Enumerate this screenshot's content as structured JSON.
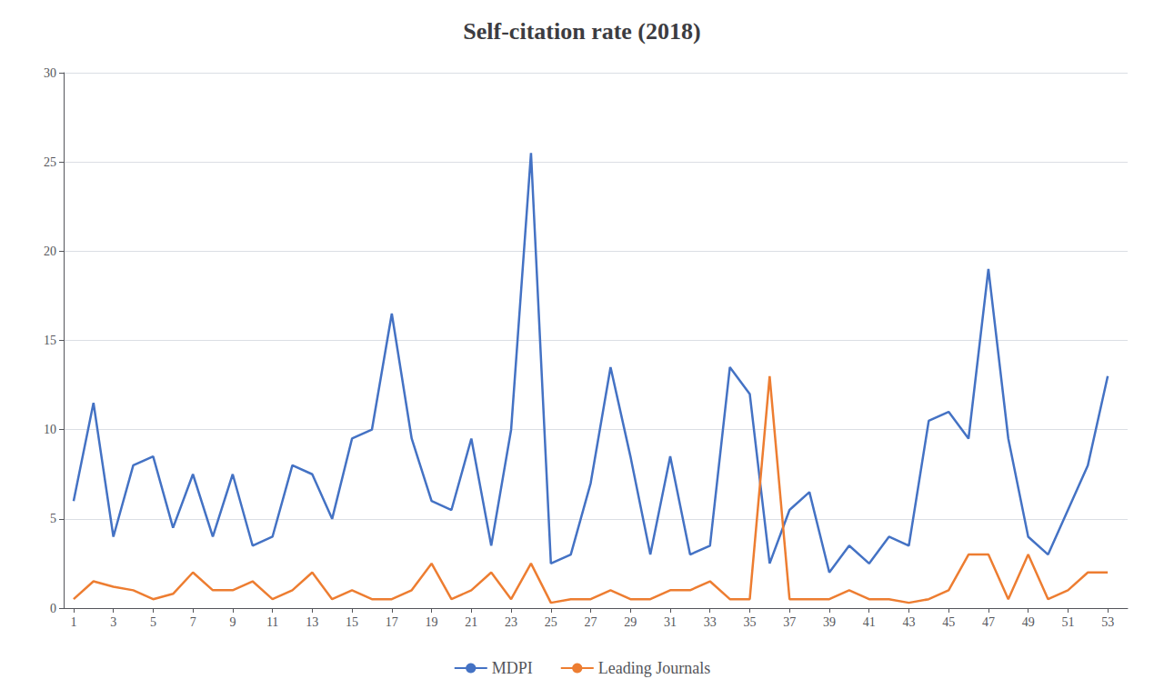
{
  "chart_data": {
    "type": "line",
    "title": "Self-citation rate (2018)",
    "x": [
      1,
      2,
      3,
      4,
      5,
      6,
      7,
      8,
      9,
      10,
      11,
      12,
      13,
      14,
      15,
      16,
      17,
      18,
      19,
      20,
      21,
      22,
      23,
      24,
      25,
      26,
      27,
      28,
      29,
      30,
      31,
      32,
      33,
      34,
      35,
      36,
      37,
      38,
      39,
      40,
      41,
      42,
      43,
      44,
      45,
      46,
      47,
      48,
      49,
      50,
      51,
      52,
      53
    ],
    "series": [
      {
        "name": "MDPI",
        "color": "#4472C4",
        "values": [
          6,
          11.5,
          4,
          8,
          8.5,
          4.5,
          7.5,
          4,
          7.5,
          3.5,
          4,
          8,
          7.5,
          5,
          9.5,
          10,
          16.5,
          9.5,
          6,
          5.5,
          9.5,
          3.5,
          10,
          25.5,
          2.5,
          3,
          7,
          13.5,
          8.5,
          3,
          8.5,
          3,
          3.5,
          13.5,
          12,
          2.5,
          5.5,
          6.5,
          2,
          3.5,
          2.5,
          4,
          3.5,
          10.5,
          11,
          9.5,
          19,
          9.5,
          4,
          3,
          5.5,
          8,
          13
        ]
      },
      {
        "name": "Leading Journals",
        "color": "#ED7D31",
        "values": [
          0.5,
          1.5,
          1.2,
          1.0,
          0.5,
          0.8,
          2,
          1,
          1,
          1.5,
          0.5,
          1,
          2,
          0.5,
          1,
          0.5,
          0.5,
          1,
          2.5,
          0.5,
          1,
          2,
          0.5,
          2.5,
          0.3,
          0.5,
          0.5,
          1,
          0.5,
          0.5,
          1,
          1,
          1.5,
          0.5,
          0.5,
          13,
          0.5,
          0.5,
          0.5,
          1,
          0.5,
          0.5,
          0.3,
          0.5,
          1,
          3,
          3,
          0.5,
          3,
          0.5,
          1,
          2,
          2
        ]
      }
    ],
    "xlim": [
      0.5,
      54
    ],
    "xticks": [
      1,
      3,
      5,
      7,
      9,
      11,
      13,
      15,
      17,
      19,
      21,
      23,
      25,
      27,
      29,
      31,
      33,
      35,
      37,
      39,
      41,
      43,
      45,
      47,
      49,
      51,
      53
    ],
    "ylim": [
      0,
      30
    ],
    "yticks": [
      0,
      5,
      10,
      15,
      20,
      25,
      30
    ],
    "grid": true,
    "legend": "bottom"
  }
}
